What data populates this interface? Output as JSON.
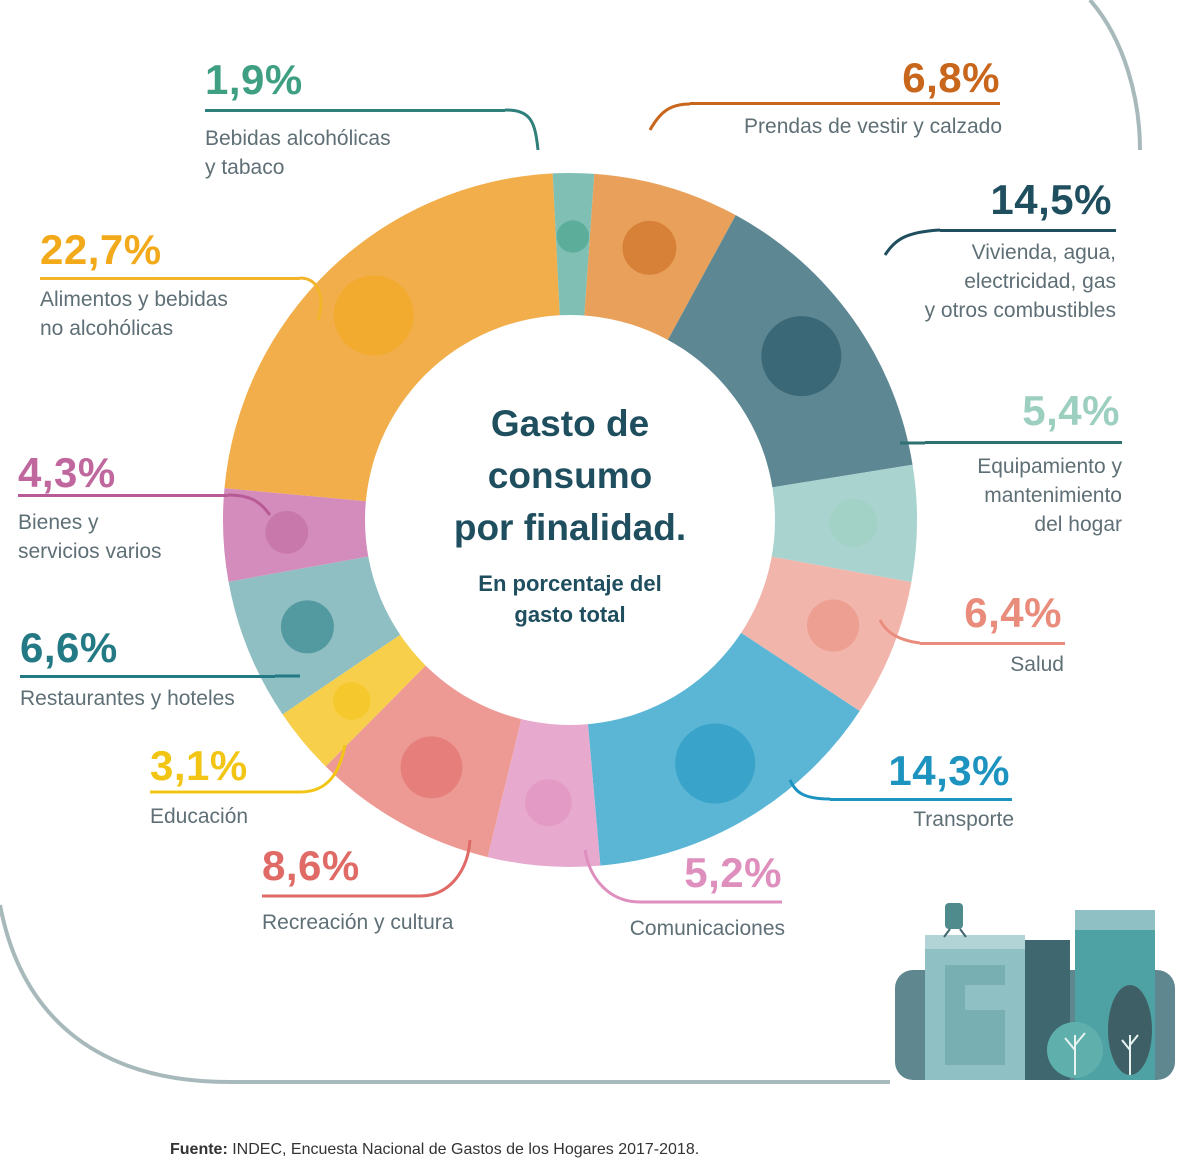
{
  "center": {
    "title_lines": [
      "Gasto de",
      "consumo",
      "por finalidad."
    ],
    "subtitle_lines": [
      "En porcentaje del",
      "gasto total"
    ]
  },
  "footer": {
    "label": "Fuente:",
    "text": " INDEC, Encuesta Nacional de Gastos de los Hogares 2017-2018."
  },
  "segments": [
    {
      "key": "prendas",
      "pct": "6,8%",
      "value": 6.8,
      "label_lines": [
        "Prendas de vestir y calzado"
      ],
      "color": "#e9a05a",
      "text_color": "#c8661c",
      "icon": "tshirt-shoe-icon"
    },
    {
      "key": "vivienda",
      "pct": "14,5%",
      "value": 14.5,
      "label_lines": [
        "Vivienda, agua,",
        "electricidad, gas",
        "y otros combustibles"
      ],
      "color": "#5d8793",
      "text_color": "#1f4e5f",
      "icon": "key-lightbulb-icon"
    },
    {
      "key": "equipamiento",
      "pct": "5,4%",
      "value": 5.4,
      "label_lines": [
        "Equipamiento y",
        "mantenimiento",
        "del hogar"
      ],
      "color": "#a9d3cf",
      "text_color": "#9ccfc0",
      "icon": "washing-machine-icon"
    },
    {
      "key": "salud",
      "pct": "6,4%",
      "value": 6.4,
      "label_lines": [
        "Salud"
      ],
      "color": "#f2b5ac",
      "text_color": "#e98c7c",
      "icon": "medical-cross-icon"
    },
    {
      "key": "transporte",
      "pct": "14,3%",
      "value": 14.3,
      "label_lines": [
        "Transporte"
      ],
      "color": "#5bb6d6",
      "text_color": "#1d93c0",
      "icon": "car-sube-card-icon"
    },
    {
      "key": "comunicaciones",
      "pct": "5,2%",
      "value": 5.2,
      "label_lines": [
        "Comunicaciones"
      ],
      "color": "#e8a9cf",
      "text_color": "#df8fbd",
      "icon": "smartphone-icon"
    },
    {
      "key": "recreacion",
      "pct": "8,6%",
      "value": 8.6,
      "label_lines": [
        "Recreación y cultura"
      ],
      "color": "#ee9a94",
      "text_color": "#e06a66",
      "icon": "guitar-ball-icon"
    },
    {
      "key": "educacion",
      "pct": "3,1%",
      "value": 3.1,
      "label_lines": [
        "Educación"
      ],
      "color": "#f8cf4a",
      "text_color": "#f2c515",
      "icon": "folder-icon"
    },
    {
      "key": "restaurantes",
      "pct": "6,6%",
      "value": 6.6,
      "label_lines": [
        "Restaurantes y hoteles"
      ],
      "color": "#8fbfc2",
      "text_color": "#237a85",
      "icon": "plate-suitcase-icon"
    },
    {
      "key": "bienes",
      "pct": "4,3%",
      "value": 4.3,
      "label_lines": [
        "Bienes y",
        "servicios varios"
      ],
      "color": "#d48cbd",
      "text_color": "#c0689e",
      "icon": "scissors-comb-icon"
    },
    {
      "key": "alimentos",
      "pct": "22,7%",
      "value": 22.7,
      "label_lines": [
        "Alimentos y bebidas",
        "no alcohólicas"
      ],
      "color": "#f2ae4a",
      "text_color": "#f2a91a",
      "icon": "chicken-juice-icon"
    },
    {
      "key": "bebidas",
      "pct": "1,9%",
      "value": 1.9,
      "label_lines": [
        "Bebidas alcohólicas",
        "y tabaco"
      ],
      "color": "#7fbfb4",
      "text_color": "#3f9f83",
      "icon": "bottle-icon"
    }
  ],
  "chart_data": {
    "type": "pie",
    "title": "Gasto de consumo por finalidad.",
    "subtitle": "En porcentaje del gasto total",
    "categories": [
      "Prendas de vestir y calzado",
      "Vivienda, agua, electricidad, gas y otros combustibles",
      "Equipamiento y mantenimiento del hogar",
      "Salud",
      "Transporte",
      "Comunicaciones",
      "Recreación y cultura",
      "Educación",
      "Restaurantes y hoteles",
      "Bienes y servicios varios",
      "Alimentos y bebidas no alcohólicas",
      "Bebidas alcohólicas y tabaco"
    ],
    "values": [
      6.8,
      14.5,
      5.4,
      6.4,
      14.3,
      5.2,
      8.6,
      3.1,
      6.6,
      4.3,
      22.7,
      1.9
    ],
    "unit": "%",
    "donut": true,
    "source": "INDEC, Encuesta Nacional de Gastos de los Hogares 2017-2018."
  }
}
